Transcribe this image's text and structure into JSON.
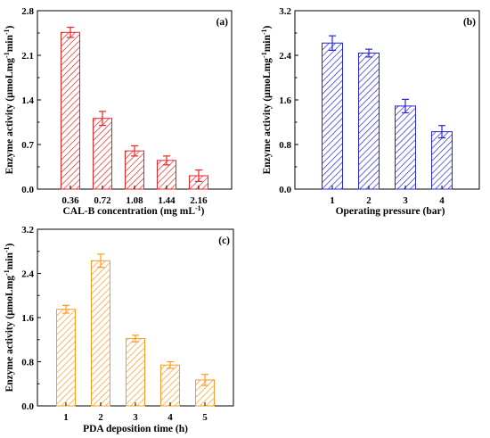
{
  "chart_data": [
    {
      "type": "bar",
      "panel": "(a)",
      "color": "#ee2222",
      "categories": [
        "0.36",
        "0.72",
        "1.08",
        "1.44",
        "2.16"
      ],
      "values": [
        2.46,
        1.11,
        0.6,
        0.45,
        0.21
      ],
      "errors": [
        0.08,
        0.11,
        0.08,
        0.07,
        0.09
      ],
      "xlabel": "CAL-B concentration (mg mL",
      "xlabel_sup": "-1",
      "xlabel_end": ")",
      "ylabel": "Enzyme activity (μmoLmg",
      "ylabel_sup1": "-1",
      "ylabel_mid": "min",
      "ylabel_sup2": "-1",
      "ylabel_end": ")",
      "ylim": [
        0,
        2.8
      ],
      "yticks": [
        "0.0",
        "0.7",
        "1.4",
        "2.1",
        "2.8"
      ],
      "grid": false
    },
    {
      "type": "bar",
      "panel": "(b)",
      "color": "#2626dd",
      "categories": [
        "1",
        "2",
        "3",
        "4"
      ],
      "values": [
        2.62,
        2.44,
        1.49,
        1.03
      ],
      "errors": [
        0.13,
        0.07,
        0.12,
        0.11
      ],
      "xlabel": "Operating pressure (bar)",
      "xlabel_sup": "",
      "xlabel_end": "",
      "ylabel": "Enzyme activity (μmoLmg",
      "ylabel_sup1": "-1",
      "ylabel_mid": "min",
      "ylabel_sup2": "-1",
      "ylabel_end": ")",
      "ylim": [
        0,
        3.2
      ],
      "yticks": [
        "0.0",
        "0.8",
        "1.6",
        "2.4",
        "3.2"
      ],
      "grid": false
    },
    {
      "type": "bar",
      "panel": "(c)",
      "color": "#ff9922",
      "categories": [
        "1",
        "2",
        "3",
        "4",
        "5"
      ],
      "values": [
        1.75,
        2.63,
        1.22,
        0.74,
        0.47
      ],
      "errors": [
        0.07,
        0.12,
        0.06,
        0.06,
        0.1
      ],
      "xlabel": "PDA deposition time (h)",
      "xlabel_sup": "",
      "xlabel_end": "",
      "ylabel": "Enzyme activity (μmoLmg",
      "ylabel_sup1": "-1",
      "ylabel_mid": "min",
      "ylabel_sup2": "-1",
      "ylabel_end": ")",
      "ylim": [
        0,
        3.2
      ],
      "yticks": [
        "0.0",
        "0.8",
        "1.6",
        "2.4",
        "3.2"
      ],
      "grid": false
    }
  ]
}
